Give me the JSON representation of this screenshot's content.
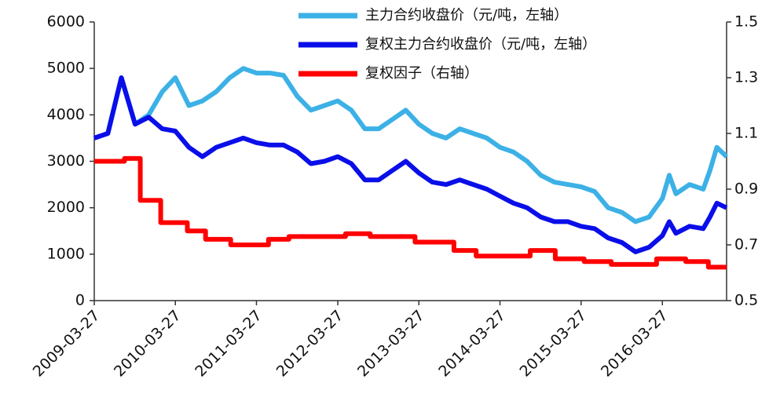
{
  "chart_data": {
    "type": "line",
    "xlim": [
      "2009-03-27",
      "2017-01-10"
    ],
    "xticks": [
      "2009-03-27",
      "2010-03-27",
      "2011-03-27",
      "2012-03-27",
      "2013-03-27",
      "2014-03-27",
      "2015-03-27",
      "2016-03-27"
    ],
    "ylim": [
      0,
      6000
    ],
    "yticks": [
      0,
      1000,
      2000,
      3000,
      4000,
      5000,
      6000
    ],
    "y2lim": [
      0.5,
      1.5
    ],
    "y2ticks": [
      0.5,
      0.7,
      0.9,
      1.1,
      1.3,
      1.5
    ],
    "legend": "top",
    "series": [
      {
        "name": "主力合约收盘价（元/吨，左轴）",
        "color": "#3cb1e6",
        "x": [
          "2009-03-27",
          "2009-05-27",
          "2009-07-27",
          "2009-09-27",
          "2009-11-27",
          "2010-01-27",
          "2010-03-27",
          "2010-05-27",
          "2010-07-27",
          "2010-09-27",
          "2010-11-27",
          "2011-01-27",
          "2011-03-27",
          "2011-05-27",
          "2011-07-27",
          "2011-09-27",
          "2011-11-27",
          "2012-01-27",
          "2012-03-27",
          "2012-05-27",
          "2012-07-27",
          "2012-09-27",
          "2012-11-27",
          "2013-01-27",
          "2013-03-27",
          "2013-05-27",
          "2013-07-27",
          "2013-09-27",
          "2013-11-27",
          "2014-01-27",
          "2014-03-27",
          "2014-05-27",
          "2014-07-27",
          "2014-09-27",
          "2014-11-27",
          "2015-01-27",
          "2015-03-27",
          "2015-05-27",
          "2015-07-27",
          "2015-09-27",
          "2015-11-27",
          "2016-01-27",
          "2016-03-27",
          "2016-04-27",
          "2016-05-27",
          "2016-07-27",
          "2016-09-27",
          "2016-10-27",
          "2016-11-27",
          "2017-01-10"
        ],
        "values": [
          3500,
          3600,
          4800,
          3800,
          4000,
          4500,
          4800,
          4200,
          4300,
          4500,
          4800,
          5000,
          4900,
          4900,
          4850,
          4400,
          4100,
          4200,
          4300,
          4100,
          3700,
          3700,
          3900,
          4100,
          3800,
          3600,
          3500,
          3700,
          3600,
          3500,
          3300,
          3200,
          3000,
          2700,
          2550,
          2500,
          2450,
          2350,
          2000,
          1900,
          1700,
          1800,
          2200,
          2700,
          2300,
          2500,
          2400,
          2800,
          3300,
          3100
        ]
      },
      {
        "name": "复权主力合约收盘价（元/吨，左轴）",
        "color": "#0a0ee8",
        "x": [
          "2009-03-27",
          "2009-05-27",
          "2009-07-27",
          "2009-09-27",
          "2009-11-27",
          "2010-01-27",
          "2010-03-27",
          "2010-05-27",
          "2010-07-27",
          "2010-09-27",
          "2010-11-27",
          "2011-01-27",
          "2011-03-27",
          "2011-05-27",
          "2011-07-27",
          "2011-09-27",
          "2011-11-27",
          "2012-01-27",
          "2012-03-27",
          "2012-05-27",
          "2012-07-27",
          "2012-09-27",
          "2012-11-27",
          "2013-01-27",
          "2013-03-27",
          "2013-05-27",
          "2013-07-27",
          "2013-09-27",
          "2013-11-27",
          "2014-01-27",
          "2014-03-27",
          "2014-05-27",
          "2014-07-27",
          "2014-09-27",
          "2014-11-27",
          "2015-01-27",
          "2015-03-27",
          "2015-05-27",
          "2015-07-27",
          "2015-09-27",
          "2015-11-27",
          "2016-01-27",
          "2016-03-27",
          "2016-04-27",
          "2016-05-27",
          "2016-07-27",
          "2016-09-27",
          "2016-10-27",
          "2016-11-27",
          "2017-01-10"
        ],
        "values": [
          3500,
          3600,
          4800,
          3800,
          3950,
          3700,
          3650,
          3300,
          3100,
          3300,
          3400,
          3500,
          3400,
          3350,
          3350,
          3200,
          2950,
          3000,
          3100,
          2950,
          2600,
          2600,
          2800,
          3000,
          2750,
          2550,
          2500,
          2600,
          2500,
          2400,
          2250,
          2100,
          2000,
          1800,
          1700,
          1700,
          1600,
          1550,
          1350,
          1250,
          1050,
          1150,
          1400,
          1700,
          1450,
          1600,
          1550,
          1800,
          2100,
          2000
        ]
      },
      {
        "name": "复权因子（右轴）",
        "color": "#ff0000",
        "axis": "y2",
        "x": [
          "2009-03-27",
          "2009-08-10",
          "2009-08-10",
          "2009-10-20",
          "2009-10-20",
          "2010-01-20",
          "2010-01-20",
          "2010-05-20",
          "2010-05-20",
          "2010-08-10",
          "2010-08-10",
          "2010-12-01",
          "2010-12-01",
          "2011-05-20",
          "2011-05-20",
          "2011-08-20",
          "2011-08-20",
          "2012-05-01",
          "2012-05-01",
          "2012-08-20",
          "2012-08-20",
          "2013-03-10",
          "2013-03-10",
          "2013-09-01",
          "2013-09-01",
          "2013-12-10",
          "2013-12-10",
          "2014-08-10",
          "2014-08-10",
          "2014-12-01",
          "2014-12-01",
          "2015-04-10",
          "2015-04-10",
          "2015-08-10",
          "2015-08-10",
          "2016-03-01",
          "2016-03-01",
          "2016-07-10",
          "2016-07-10",
          "2016-10-20",
          "2016-10-20",
          "2017-01-10"
        ],
        "values": [
          1.0,
          1.0,
          1.01,
          1.01,
          0.86,
          0.86,
          0.78,
          0.78,
          0.75,
          0.75,
          0.72,
          0.72,
          0.7,
          0.7,
          0.72,
          0.72,
          0.73,
          0.73,
          0.74,
          0.74,
          0.73,
          0.73,
          0.71,
          0.71,
          0.68,
          0.68,
          0.66,
          0.66,
          0.68,
          0.68,
          0.65,
          0.65,
          0.64,
          0.64,
          0.63,
          0.63,
          0.65,
          0.65,
          0.64,
          0.64,
          0.62,
          0.62
        ]
      }
    ]
  }
}
